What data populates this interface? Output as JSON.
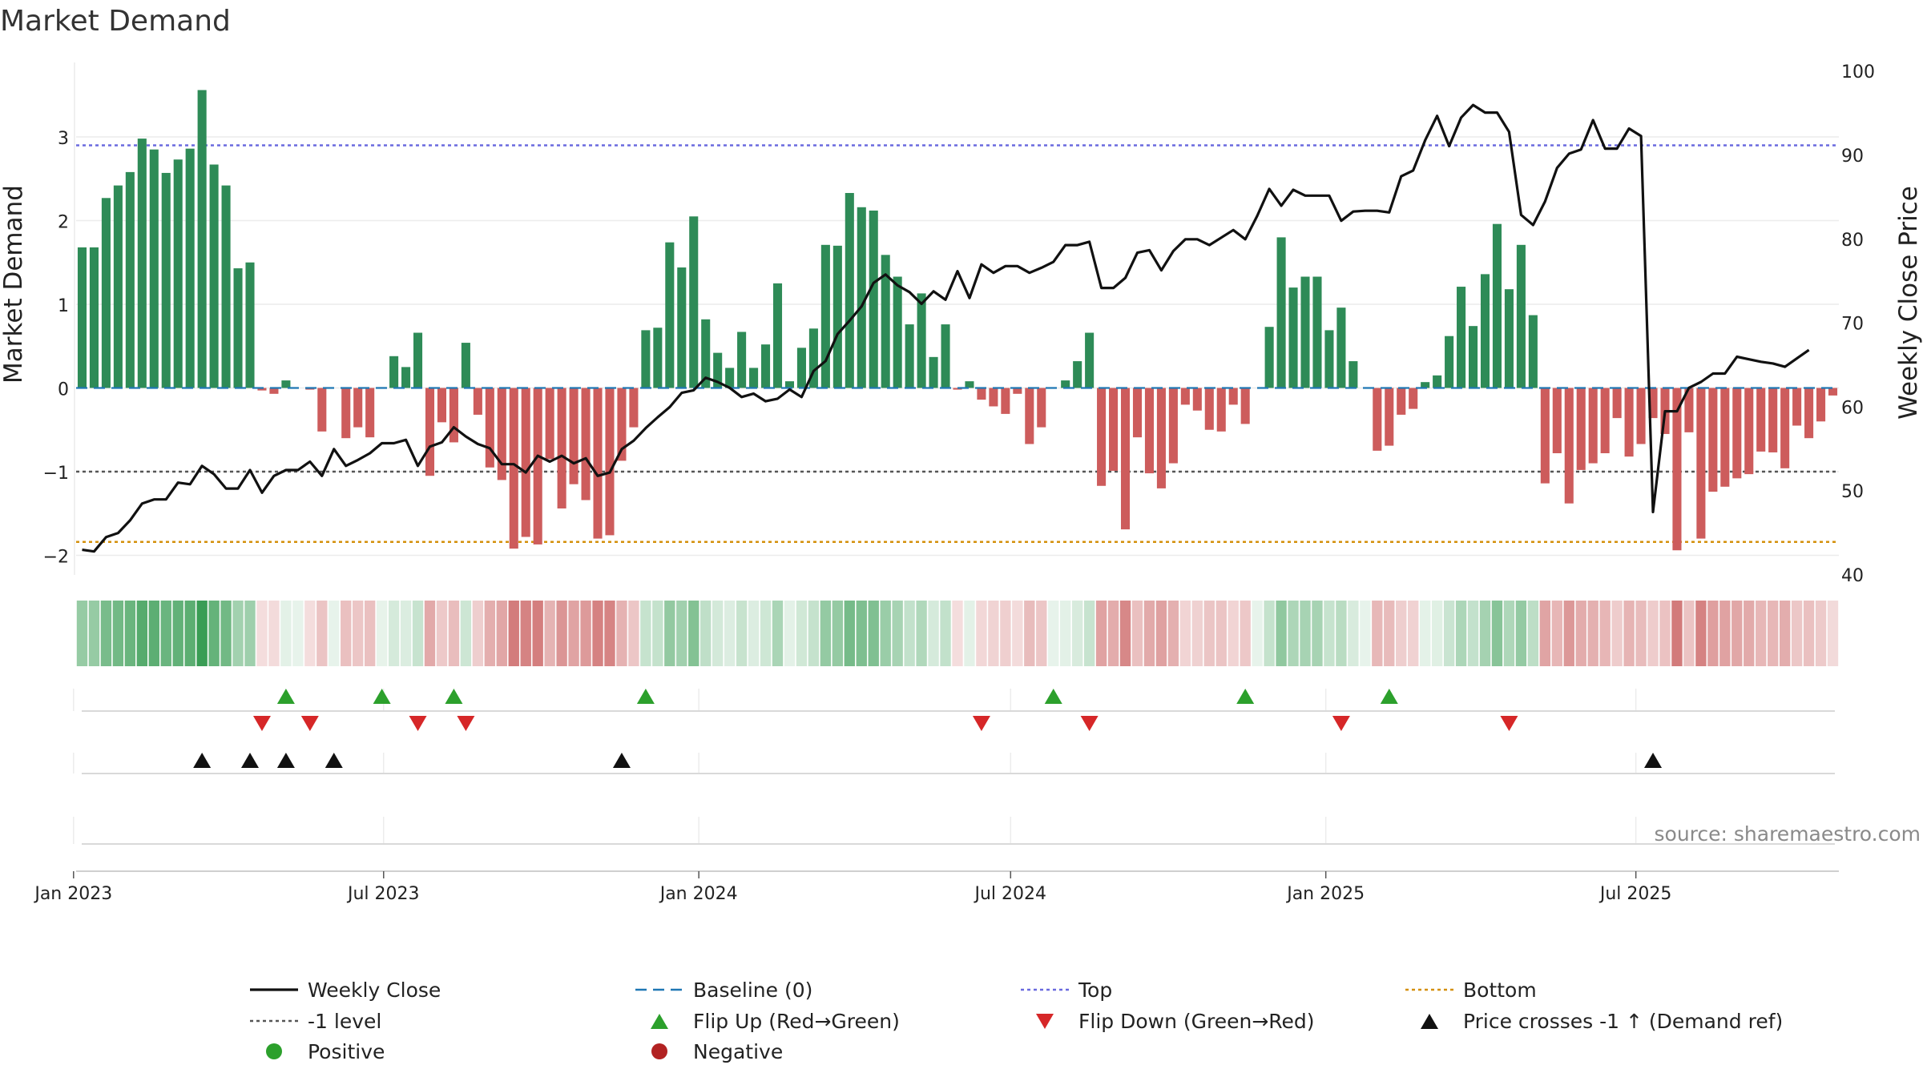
{
  "chart_data": {
    "type": "bar+line",
    "title": "Market Demand",
    "ylabel_left": "Market Demand",
    "ylabel_right": "Weekly Close Price",
    "ylim_left": [
      -2.2,
      3.75
    ],
    "ylim_right": [
      40,
      100
    ],
    "left_ticks": [
      -2,
      -1,
      0,
      1,
      2,
      3
    ],
    "left_tick_labels": [
      "−2",
      "−1",
      "0",
      "1",
      "2",
      "3"
    ],
    "right_ticks": [
      40,
      50,
      60,
      70,
      80,
      90,
      100
    ],
    "x_start": "2023-01-06",
    "x_tick_dates": [
      "2023-01-01",
      "2023-07-01",
      "2024-01-01",
      "2024-07-01",
      "2025-01-01",
      "2025-07-01"
    ],
    "x_tick_labels": [
      "Jan 2023",
      "Jul 2023",
      "Jan 2024",
      "Jul 2024",
      "Jan 2025",
      "Jul 2025"
    ],
    "reference_lines": {
      "baseline": 0,
      "top": 2.9,
      "minus_one": -1,
      "bottom": -1.84
    },
    "series": [
      {
        "name": "Market Demand",
        "kind": "bar",
        "values": [
          1.68,
          1.68,
          2.27,
          2.42,
          2.58,
          2.98,
          2.85,
          2.57,
          2.73,
          2.86,
          3.56,
          2.67,
          2.42,
          1.43,
          1.5,
          -0.03,
          -0.07,
          0.09,
          0.0,
          -0.02,
          -0.52,
          0.0,
          -0.6,
          -0.47,
          -0.59,
          0.01,
          0.38,
          0.25,
          0.66,
          -1.05,
          -0.41,
          -0.65,
          0.54,
          -0.32,
          -0.95,
          -1.1,
          -1.92,
          -1.78,
          -1.87,
          -0.85,
          -1.44,
          -1.15,
          -1.34,
          -1.8,
          -1.76,
          -0.87,
          -0.47,
          0.69,
          0.72,
          1.74,
          1.44,
          2.05,
          0.82,
          0.42,
          0.24,
          0.67,
          0.24,
          0.52,
          1.25,
          0.08,
          0.48,
          0.71,
          1.71,
          1.7,
          2.33,
          2.16,
          2.12,
          1.59,
          1.33,
          0.76,
          1.13,
          0.37,
          0.76,
          -0.02,
          0.08,
          -0.14,
          -0.22,
          -0.31,
          -0.07,
          -0.67,
          -0.47,
          0.0,
          0.09,
          0.32,
          0.66,
          -1.17,
          -0.99,
          -1.69,
          -0.59,
          -1.02,
          -1.2,
          -0.9,
          -0.2,
          -0.27,
          -0.5,
          -0.52,
          -0.2,
          -0.43,
          0.0,
          0.73,
          1.8,
          1.2,
          1.33,
          1.33,
          0.69,
          0.96,
          0.32,
          0.0,
          -0.75,
          -0.69,
          -0.32,
          -0.25,
          0.07,
          0.15,
          0.62,
          1.21,
          0.74,
          1.36,
          1.96,
          1.18,
          1.71,
          0.87,
          -1.14,
          -0.78,
          -1.38,
          -0.98,
          -0.9,
          -0.78,
          -0.36,
          -0.82,
          -0.67,
          -0.36,
          -0.55,
          -1.94,
          -0.53,
          -1.8,
          -1.24,
          -1.18,
          -1.08,
          -1.03,
          -0.76,
          -0.77,
          -0.96,
          -0.45,
          -0.6,
          -0.4,
          -0.09
        ]
      },
      {
        "name": "Weekly Close",
        "kind": "line",
        "values": [
          43.0,
          42.8,
          44.5,
          45.0,
          46.5,
          48.5,
          49.0,
          49.0,
          51.0,
          50.8,
          53.0,
          52.0,
          50.3,
          50.3,
          52.5,
          49.8,
          51.8,
          52.5,
          52.5,
          53.5,
          51.8,
          55.0,
          53.0,
          53.7,
          54.5,
          55.7,
          55.7,
          56.1,
          53.0,
          55.3,
          55.8,
          57.6,
          56.5,
          55.6,
          55.1,
          53.2,
          53.2,
          52.2,
          54.2,
          53.5,
          54.2,
          53.3,
          53.9,
          51.8,
          52.2,
          55.0,
          56.0,
          57.5,
          58.8,
          60.0,
          61.7,
          62.0,
          63.5,
          63.0,
          62.3,
          61.2,
          61.6,
          60.7,
          61.0,
          62.1,
          61.2,
          64.3,
          65.5,
          68.7,
          70.3,
          72.0,
          74.8,
          75.8,
          74.5,
          73.7,
          72.3,
          73.8,
          72.8,
          76.2,
          73.0,
          77.0,
          76.0,
          76.8,
          76.8,
          76.0,
          76.6,
          77.3,
          79.3,
          79.3,
          79.7,
          74.2,
          74.2,
          75.4,
          78.4,
          78.7,
          76.3,
          78.6,
          80.0,
          80.0,
          79.3,
          80.2,
          81.1,
          80.0,
          82.8,
          86.0,
          84.0,
          85.9,
          85.2,
          85.2,
          85.2,
          82.2,
          83.3,
          83.4,
          83.4,
          83.2,
          87.5,
          88.2,
          91.8,
          94.7,
          91.1,
          94.5,
          96.0,
          95.1,
          95.1,
          92.8,
          82.9,
          81.7,
          84.5,
          88.5,
          90.2,
          90.7,
          94.2,
          90.8,
          90.8,
          93.2,
          92.3,
          47.5,
          59.5,
          59.5,
          62.3,
          63.0,
          64.0,
          64.0,
          66.0,
          65.7,
          65.4,
          65.2,
          64.8,
          65.8,
          66.8
        ]
      }
    ],
    "flip_up_weeks": [
      17,
      25,
      31,
      47,
      81,
      97,
      109
    ],
    "flip_down_weeks": [
      15,
      19,
      28,
      32,
      75,
      84,
      105,
      119
    ],
    "price_cross_weeks": [
      10,
      14,
      17,
      21,
      45,
      131
    ],
    "legend": {
      "weekly_close": "Weekly Close",
      "baseline": "Baseline (0)",
      "top": "Top",
      "bottom": "Bottom",
      "minus_one": "-1 level",
      "flip_up": "Flip Up (Red→Green)",
      "flip_down": "Flip Down (Green→Red)",
      "price_cross": "Price crosses -1 ↑ (Demand ref)",
      "positive": "Positive",
      "negative": "Negative"
    },
    "source": "source: sharemaestro.com",
    "colors": {
      "positive_bar": "#2e8b57",
      "negative_bar": "#cd5c5c",
      "line": "#111111",
      "baseline": "#1f77b4",
      "top": "#6a6adf",
      "minus_one": "#555555",
      "bottom": "#d4900b",
      "flip_up": "#2ca02c",
      "flip_down": "#d62728",
      "cross": "#111111",
      "positive_dot": "#2ca02c",
      "negative_dot": "#b22222"
    }
  }
}
